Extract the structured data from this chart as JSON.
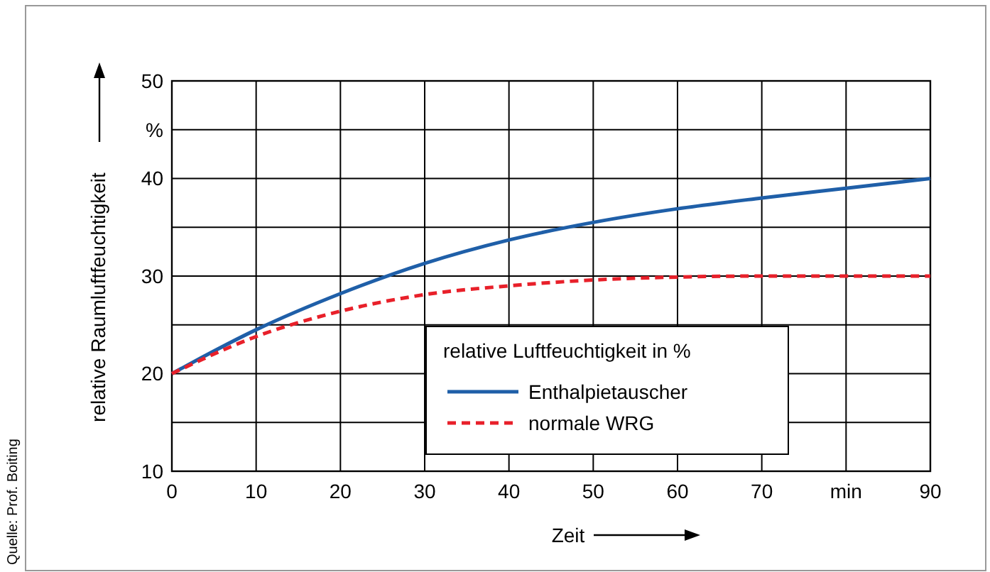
{
  "chart_data": {
    "type": "line",
    "xlabel": "Zeit",
    "ylabel": "relative Raumluftfeuchtigkeit",
    "legend_title": "relative Luftfeuchtigkeit in %",
    "x": [
      0,
      10,
      20,
      30,
      40,
      50,
      60,
      70,
      80,
      90
    ],
    "series": [
      {
        "name": "Enthalpietauscher",
        "color": "#1f5fa8",
        "line_style": "solid",
        "values": [
          20,
          24.5,
          28.2,
          31.3,
          33.7,
          35.5,
          36.9,
          38.0,
          39.0,
          40
        ]
      },
      {
        "name": "normale WRG",
        "color": "#e8202a",
        "line_style": "dashed",
        "values": [
          20,
          23.8,
          26.4,
          28.1,
          29.0,
          29.6,
          29.9,
          30,
          30,
          30
        ]
      }
    ],
    "xlim": [
      0,
      90
    ],
    "xticks": [
      0,
      10,
      20,
      30,
      40,
      50,
      60,
      70,
      {
        "value": 80,
        "label": "min"
      },
      90
    ],
    "ylim": [
      10,
      50
    ],
    "yticks": [
      10,
      {
        "value": 15,
        "label": null
      },
      20,
      {
        "value": 25,
        "label": null
      },
      30,
      {
        "value": 35,
        "label": null
      },
      40,
      {
        "value": 45,
        "label": "%"
      },
      50
    ],
    "grid": true,
    "legend": "bottom",
    "marker": "none",
    "annotations": [
      "Quelle: Prof. Boiting"
    ]
  }
}
